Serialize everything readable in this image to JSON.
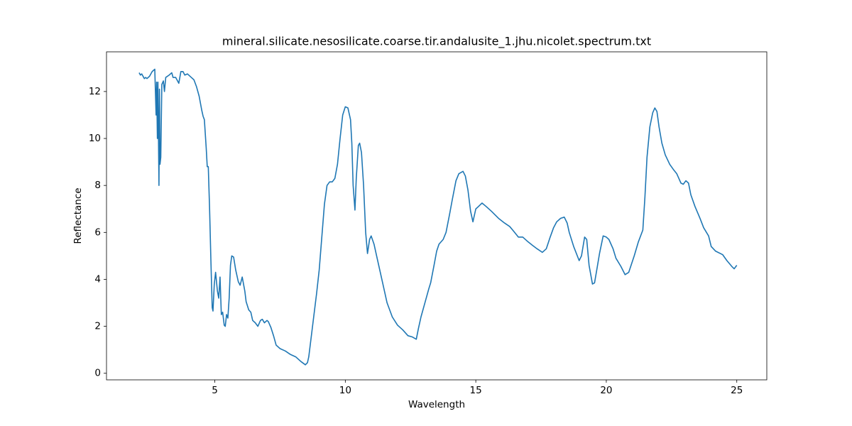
{
  "chart_data": {
    "type": "line",
    "title": "mineral.silicate.nesosilicate.coarse.tir.andalusite_1.jhu.nicolet.spectrum.txt",
    "xlabel": "Wavelength",
    "ylabel": "Reflectance",
    "color": "#1f77b4",
    "grid": false,
    "xlim": [
      0.85,
      26.15
    ],
    "ylim": [
      -0.28,
      13.69
    ],
    "xticks": [
      5,
      10,
      15,
      20,
      25
    ],
    "yticks": [
      0,
      2,
      4,
      6,
      8,
      10,
      12
    ],
    "x": [
      2.1,
      2.15,
      2.2,
      2.3,
      2.35,
      2.4,
      2.5,
      2.6,
      2.7,
      2.75,
      2.77,
      2.8,
      2.82,
      2.86,
      2.88,
      2.9,
      2.93,
      2.97,
      3.03,
      3.07,
      3.12,
      3.25,
      3.35,
      3.4,
      3.5,
      3.62,
      3.7,
      3.78,
      3.85,
      3.95,
      4.1,
      4.2,
      4.3,
      4.4,
      4.5,
      4.55,
      4.6,
      4.67,
      4.71,
      4.75,
      4.8,
      4.85,
      4.9,
      4.93,
      4.98,
      5.03,
      5.1,
      5.15,
      5.2,
      5.25,
      5.3,
      5.36,
      5.4,
      5.45,
      5.5,
      5.55,
      5.6,
      5.65,
      5.72,
      5.8,
      5.9,
      5.97,
      6.05,
      6.1,
      6.15,
      6.2,
      6.3,
      6.38,
      6.45,
      6.55,
      6.65,
      6.75,
      6.82,
      6.9,
      7.0,
      7.05,
      7.15,
      7.25,
      7.35,
      7.5,
      7.7,
      7.9,
      8.1,
      8.3,
      8.47,
      8.55,
      8.6,
      8.7,
      8.8,
      8.9,
      9.0,
      9.1,
      9.2,
      9.3,
      9.4,
      9.5,
      9.6,
      9.7,
      9.8,
      9.9,
      10.0,
      10.1,
      10.2,
      10.25,
      10.3,
      10.37,
      10.42,
      10.5,
      10.55,
      10.62,
      10.7,
      10.78,
      10.85,
      10.93,
      10.99,
      11.1,
      11.2,
      11.3,
      11.4,
      11.6,
      11.8,
      12.0,
      12.2,
      12.4,
      12.56,
      12.72,
      12.8,
      12.9,
      13.05,
      13.2,
      13.27,
      13.4,
      13.5,
      13.59,
      13.75,
      13.86,
      14.0,
      14.1,
      14.24,
      14.35,
      14.51,
      14.6,
      14.7,
      14.8,
      14.89,
      15.0,
      15.1,
      15.24,
      15.4,
      15.6,
      15.87,
      16.1,
      16.3,
      16.45,
      16.63,
      16.8,
      17.0,
      17.17,
      17.35,
      17.55,
      17.7,
      17.85,
      17.98,
      18.1,
      18.25,
      18.39,
      18.5,
      18.58,
      18.75,
      18.96,
      19.05,
      19.17,
      19.25,
      19.34,
      19.47,
      19.55,
      19.65,
      19.74,
      19.88,
      20.0,
      20.1,
      20.26,
      20.37,
      20.56,
      20.72,
      20.86,
      21.07,
      21.23,
      21.4,
      21.48,
      21.56,
      21.67,
      21.78,
      21.86,
      21.94,
      22.02,
      22.13,
      22.26,
      22.43,
      22.59,
      22.7,
      22.86,
      22.95,
      23.05,
      23.15,
      23.24,
      23.4,
      23.59,
      23.73,
      23.92,
      24.02,
      24.19,
      24.46,
      24.62,
      24.81,
      24.9,
      25.0
    ],
    "values": [
      12.8,
      12.7,
      12.75,
      12.55,
      12.6,
      12.55,
      12.65,
      12.85,
      12.95,
      11.0,
      12.4,
      10.0,
      12.4,
      8.0,
      12.1,
      8.9,
      9.2,
      12.3,
      12.45,
      12.0,
      12.6,
      12.7,
      12.8,
      12.6,
      12.6,
      12.35,
      12.85,
      12.85,
      12.7,
      12.75,
      12.6,
      12.5,
      12.2,
      11.8,
      11.2,
      10.95,
      10.8,
      9.6,
      8.8,
      8.8,
      7.0,
      4.8,
      2.8,
      2.65,
      3.8,
      4.3,
      3.5,
      3.2,
      4.1,
      2.5,
      2.6,
      2.05,
      2.0,
      2.5,
      2.35,
      3.2,
      4.6,
      5.0,
      4.95,
      4.4,
      3.9,
      3.75,
      4.1,
      3.8,
      3.5,
      3.05,
      2.7,
      2.6,
      2.25,
      2.15,
      2.0,
      2.25,
      2.3,
      2.15,
      2.25,
      2.2,
      1.95,
      1.6,
      1.2,
      1.05,
      0.95,
      0.8,
      0.7,
      0.5,
      0.36,
      0.45,
      0.7,
      1.6,
      2.5,
      3.4,
      4.4,
      5.8,
      7.2,
      8.0,
      8.15,
      8.15,
      8.3,
      8.9,
      10.0,
      11.0,
      11.35,
      11.3,
      10.8,
      9.8,
      8.0,
      6.95,
      8.3,
      9.7,
      9.8,
      9.4,
      8.0,
      6.0,
      5.1,
      5.7,
      5.85,
      5.5,
      5.0,
      4.5,
      4.0,
      3.0,
      2.4,
      2.05,
      1.85,
      1.6,
      1.55,
      1.45,
      1.9,
      2.4,
      3.0,
      3.6,
      3.85,
      4.6,
      5.2,
      5.5,
      5.7,
      6.0,
      6.8,
      7.4,
      8.2,
      8.5,
      8.6,
      8.4,
      7.8,
      6.9,
      6.45,
      7.0,
      7.1,
      7.25,
      7.1,
      6.9,
      6.6,
      6.4,
      6.25,
      6.05,
      5.8,
      5.8,
      5.6,
      5.45,
      5.3,
      5.15,
      5.3,
      5.8,
      6.2,
      6.45,
      6.6,
      6.65,
      6.4,
      6.0,
      5.4,
      4.8,
      5.0,
      5.8,
      5.7,
      4.6,
      3.8,
      3.85,
      4.5,
      5.1,
      5.85,
      5.8,
      5.7,
      5.3,
      4.9,
      4.55,
      4.2,
      4.3,
      5.0,
      5.6,
      6.1,
      7.5,
      9.2,
      10.5,
      11.1,
      11.3,
      11.15,
      10.5,
      9.8,
      9.3,
      8.9,
      8.65,
      8.5,
      8.1,
      8.05,
      8.2,
      8.1,
      7.6,
      7.1,
      6.6,
      6.2,
      5.85,
      5.4,
      5.2,
      5.05,
      4.8,
      4.55,
      4.45,
      4.6
    ]
  }
}
